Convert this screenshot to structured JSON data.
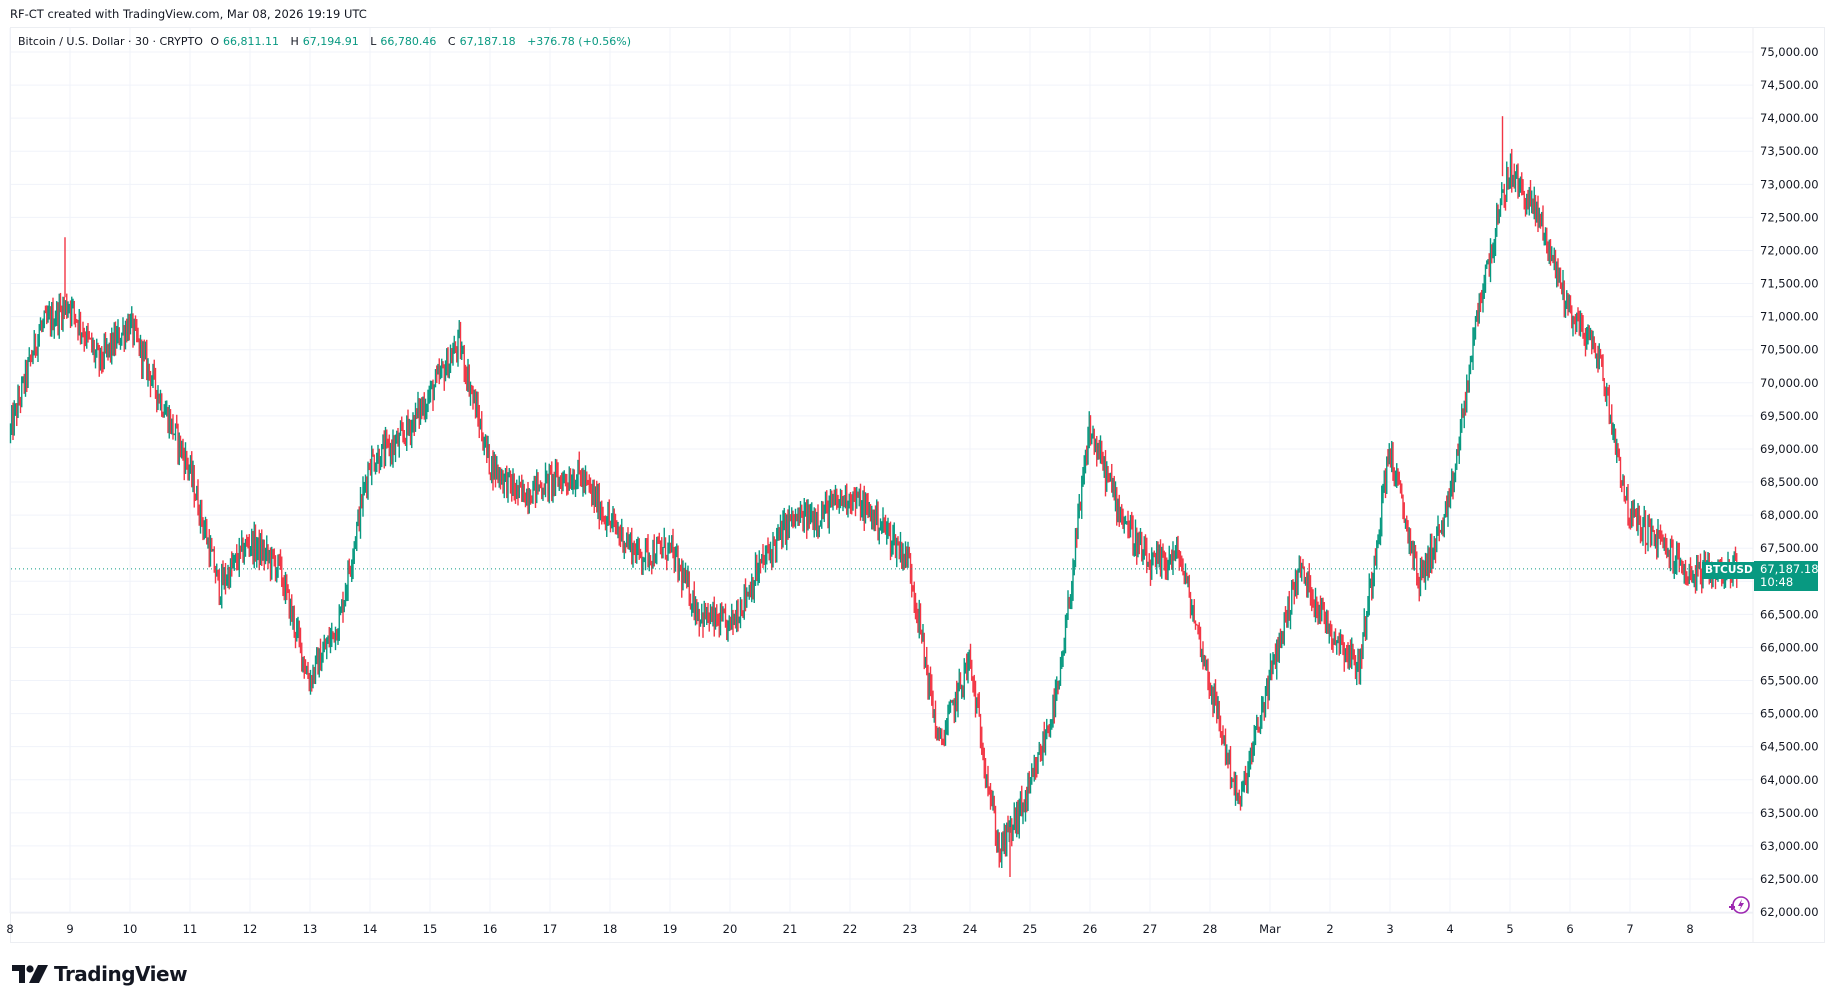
{
  "caption": "RF-CT created with TradingView.com, Mar 08, 2026 19:19 UTC",
  "legend": {
    "symbol": "Bitcoin / U.S. Dollar · 30 · CRYPTO",
    "o_label": "O",
    "o": "66,811.11",
    "h_label": "H",
    "h": "67,194.91",
    "l_label": "L",
    "l": "66,780.46",
    "c_label": "C",
    "c": "67,187.18",
    "change": "+376.78 (+0.56%)"
  },
  "price_tag": {
    "symbol": "BTCUSD",
    "price": "67,187.18",
    "countdown": "10:48"
  },
  "logo": {
    "text": "TradingView",
    "icon": "tradingview-logo-icon"
  },
  "colors": {
    "up": "#089981",
    "down": "#F23645",
    "grid": "#f0f3fa",
    "text": "#131722",
    "accent_icon": "#9c27b0"
  },
  "chart_data": {
    "type": "candlestick",
    "title": "Bitcoin / U.S. Dollar · 30 · CRYPTO",
    "interval": "30",
    "xlabel": "",
    "ylabel": "",
    "ylim": [
      62000,
      75000
    ],
    "y_ticks": [
      "75,000.00",
      "74,500.00",
      "74,000.00",
      "73,500.00",
      "73,000.00",
      "72,500.00",
      "72,000.00",
      "71,500.00",
      "71,000.00",
      "70,500.00",
      "70,000.00",
      "69,500.00",
      "69,000.00",
      "68,500.00",
      "68,000.00",
      "67,500.00",
      "67,000.00",
      "66,500.00",
      "66,000.00",
      "65,500.00",
      "65,000.00",
      "64,500.00",
      "64,000.00",
      "63,500.00",
      "63,000.00",
      "62,500.00",
      "62,000.00"
    ],
    "x_ticks": [
      "8",
      "9",
      "10",
      "11",
      "12",
      "13",
      "14",
      "15",
      "16",
      "17",
      "18",
      "19",
      "20",
      "21",
      "22",
      "23",
      "24",
      "25",
      "26",
      "27",
      "28",
      "Mar",
      "2",
      "3",
      "4",
      "5",
      "6",
      "7",
      "8"
    ],
    "grid": true,
    "last_price": 67187.18,
    "path_note": "approximate closing-price path, two points per day from Feb 8 to Mar 8",
    "path": [
      {
        "t": "Feb 8 00:00",
        "p": 69200
      },
      {
        "t": "Feb 8 12:00",
        "p": 70800
      },
      {
        "t": "Feb 9 00:00",
        "p": 71200
      },
      {
        "t": "Feb 9 12:00",
        "p": 70300
      },
      {
        "t": "Feb 10 00:00",
        "p": 70900
      },
      {
        "t": "Feb 10 12:00",
        "p": 69800
      },
      {
        "t": "Feb 11 00:00",
        "p": 68700
      },
      {
        "t": "Feb 11 12:00",
        "p": 66900
      },
      {
        "t": "Feb 12 00:00",
        "p": 67600
      },
      {
        "t": "Feb 12 12:00",
        "p": 67200
      },
      {
        "t": "Feb 13 00:00",
        "p": 65500
      },
      {
        "t": "Feb 13 12:00",
        "p": 66400
      },
      {
        "t": "Feb 14 00:00",
        "p": 68800
      },
      {
        "t": "Feb 14 12:00",
        "p": 69100
      },
      {
        "t": "Feb 15 00:00",
        "p": 69800
      },
      {
        "t": "Feb 15 12:00",
        "p": 70600
      },
      {
        "t": "Feb 16 00:00",
        "p": 68800
      },
      {
        "t": "Feb 16 12:00",
        "p": 68300
      },
      {
        "t": "Feb 17 00:00",
        "p": 68500
      },
      {
        "t": "Feb 17 12:00",
        "p": 68600
      },
      {
        "t": "Feb 18 00:00",
        "p": 67900
      },
      {
        "t": "Feb 18 12:00",
        "p": 67400
      },
      {
        "t": "Feb 19 00:00",
        "p": 67500
      },
      {
        "t": "Feb 19 12:00",
        "p": 66500
      },
      {
        "t": "Feb 20 00:00",
        "p": 66300
      },
      {
        "t": "Feb 20 12:00",
        "p": 67200
      },
      {
        "t": "Feb 21 00:00",
        "p": 67900
      },
      {
        "t": "Feb 21 12:00",
        "p": 68000
      },
      {
        "t": "Feb 22 00:00",
        "p": 68300
      },
      {
        "t": "Feb 22 12:00",
        "p": 67900
      },
      {
        "t": "Feb 23 00:00",
        "p": 67300
      },
      {
        "t": "Feb 23 12:00",
        "p": 64500
      },
      {
        "t": "Feb 24 00:00",
        "p": 65800
      },
      {
        "t": "Feb 24 12:00",
        "p": 62900
      },
      {
        "t": "Feb 25 00:00",
        "p": 63800
      },
      {
        "t": "Feb 25 12:00",
        "p": 65400
      },
      {
        "t": "Feb 26 00:00",
        "p": 69300
      },
      {
        "t": "Feb 26 12:00",
        "p": 68100
      },
      {
        "t": "Feb 27 00:00",
        "p": 67200
      },
      {
        "t": "Feb 27 12:00",
        "p": 67400
      },
      {
        "t": "Feb 28 00:00",
        "p": 65500
      },
      {
        "t": "Feb 28 12:00",
        "p": 63600
      },
      {
        "t": "Mar 1 00:00",
        "p": 65500
      },
      {
        "t": "Mar 1 12:00",
        "p": 67200
      },
      {
        "t": "Mar 2 00:00",
        "p": 66300
      },
      {
        "t": "Mar 2 12:00",
        "p": 65700
      },
      {
        "t": "Mar 3 00:00",
        "p": 69000
      },
      {
        "t": "Mar 3 12:00",
        "p": 67000
      },
      {
        "t": "Mar 4 00:00",
        "p": 68100
      },
      {
        "t": "Mar 4 12:00",
        "p": 71200
      },
      {
        "t": "Mar 5 00:00",
        "p": 73200
      },
      {
        "t": "Mar 5 12:00",
        "p": 72500
      },
      {
        "t": "Mar 6 00:00",
        "p": 71100
      },
      {
        "t": "Mar 6 12:00",
        "p": 70400
      },
      {
        "t": "Mar 7 00:00",
        "p": 68000
      },
      {
        "t": "Mar 7 12:00",
        "p": 67600
      },
      {
        "t": "Mar 8 00:00",
        "p": 67100
      },
      {
        "t": "Mar 8 19:00",
        "p": 67187
      }
    ],
    "extremes": {
      "high": 74030,
      "high_time": "Mar 4 ~21:00",
      "low": 62530,
      "low_time": "Feb 24 ~16:00",
      "early_spike_high": 72200,
      "early_spike_time": "Feb 8 ~22:00"
    }
  }
}
